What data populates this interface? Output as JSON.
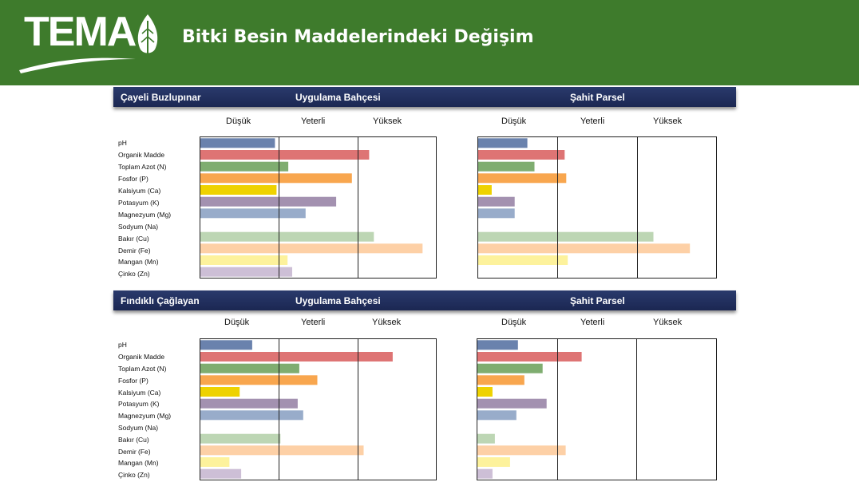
{
  "header": {
    "logo_text": "TEMA",
    "title": "Bitki Besin Maddelerindeki Değişim",
    "colors": {
      "background": "#3e7b2c",
      "text": "#ffffff"
    }
  },
  "levels": [
    "Düşük",
    "Yeterli",
    "Yüksek"
  ],
  "parameters": [
    "pH",
    "Organik Madde",
    "Toplam Azot (N)",
    "Fosfor (P)",
    "Kalsiyum (Ca)",
    "Potasyum (K)",
    "Magnezyum (Mg)",
    "Sodyum (Na)",
    "Bakır (Cu)",
    "Demir (Fe)",
    "Mangan (Mn)",
    "Çinko (Zn)"
  ],
  "bar_colors": [
    "#6a82ad",
    "#de7474",
    "#7fad70",
    "#f8a64e",
    "#eed200",
    "#a391b0",
    "#98acca",
    "#c8c8c8",
    "#bdd6b4",
    "#fdd0a6",
    "#fdf29c",
    "#cdbfd6"
  ],
  "sections": [
    {
      "location": "Çayeli Buzlupınar",
      "applied_title": "Uygulama Bahçesi",
      "control_title": "Şahit Parsel"
    },
    {
      "location": "Fındıklı Çağlayan",
      "applied_title": "Uygulama Bahçesi",
      "control_title": "Şahit Parsel"
    }
  ],
  "chart_data": [
    {
      "type": "bar",
      "orientation": "horizontal",
      "title": "Çayeli Buzlupınar — Uygulama Bahçesi",
      "categories": [
        "pH",
        "Organik Madde",
        "Toplam Azot (N)",
        "Fosfor (P)",
        "Kalsiyum (Ca)",
        "Potasyum (K)",
        "Magnezyum (Mg)",
        "Sodyum (Na)",
        "Bakır (Cu)",
        "Demir (Fe)",
        "Mangan (Mn)",
        "Çinko (Zn)"
      ],
      "values": [
        0.95,
        2.15,
        1.12,
        1.93,
        0.97,
        1.73,
        1.34,
        0.0,
        2.21,
        2.83,
        1.11,
        1.17
      ],
      "xlim": [
        0,
        3
      ],
      "xticks": [
        "Düşük",
        "Yeterli",
        "Yüksek"
      ]
    },
    {
      "type": "bar",
      "orientation": "horizontal",
      "title": "Çayeli Buzlupınar — Şahit Parsel",
      "categories": [
        "pH",
        "Organik Madde",
        "Toplam Azot (N)",
        "Fosfor (P)",
        "Kalsiyum (Ca)",
        "Potasyum (K)",
        "Magnezyum (Mg)",
        "Sodyum (Na)",
        "Bakır (Cu)",
        "Demir (Fe)",
        "Mangan (Mn)",
        "Çinko (Zn)"
      ],
      "values": [
        0.62,
        1.09,
        0.71,
        1.11,
        0.17,
        0.46,
        0.46,
        0.0,
        2.21,
        2.67,
        1.13,
        0.0
      ],
      "xlim": [
        0,
        3
      ],
      "xticks": [
        "Düşük",
        "Yeterli",
        "Yüksek"
      ]
    },
    {
      "type": "bar",
      "orientation": "horizontal",
      "title": "Fındıklı Çağlayan — Uygulama Bahçesi",
      "categories": [
        "pH",
        "Organik Madde",
        "Toplam Azot (N)",
        "Fosfor (P)",
        "Kalsiyum (Ca)",
        "Potasyum (K)",
        "Magnezyum (Mg)",
        "Sodyum (Na)",
        "Bakır (Cu)",
        "Demir (Fe)",
        "Mangan (Mn)",
        "Çinko (Zn)"
      ],
      "values": [
        0.66,
        2.45,
        1.26,
        1.49,
        0.5,
        1.24,
        1.31,
        0.0,
        1.02,
        2.08,
        0.37,
        0.52
      ],
      "xlim": [
        0,
        3
      ],
      "xticks": [
        "Düşük",
        "Yeterli",
        "Yüksek"
      ]
    },
    {
      "type": "bar",
      "orientation": "horizontal",
      "title": "Fındıklı Çağlayan — Şahit Parsel",
      "categories": [
        "pH",
        "Organik Madde",
        "Toplam Azot (N)",
        "Fosfor (P)",
        "Kalsiyum (Ca)",
        "Potasyum (K)",
        "Magnezyum (Mg)",
        "Sodyum (Na)",
        "Bakır (Cu)",
        "Demir (Fe)",
        "Mangan (Mn)",
        "Çinko (Zn)"
      ],
      "values": [
        0.51,
        1.31,
        0.82,
        0.59,
        0.19,
        0.87,
        0.49,
        0.0,
        0.22,
        1.11,
        0.41,
        0.19
      ],
      "xlim": [
        0,
        3
      ],
      "xticks": [
        "Düşük",
        "Yeterli",
        "Yüksek"
      ]
    }
  ]
}
